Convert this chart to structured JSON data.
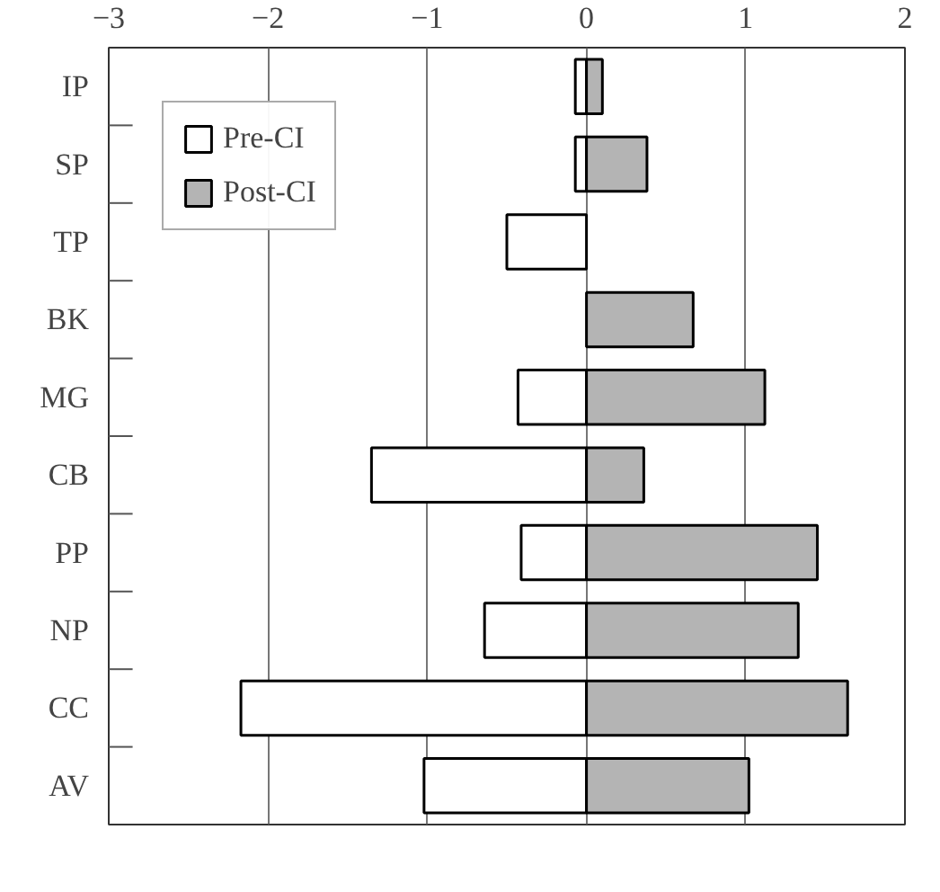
{
  "chart_data": {
    "type": "bar",
    "orientation": "horizontal",
    "categories": [
      "IP",
      "SP",
      "TP",
      "BK",
      "MG",
      "CB",
      "PP",
      "NP",
      "CC",
      "AV"
    ],
    "series": [
      {
        "name": "Pre-CI",
        "color": "#ffffff",
        "values": [
          -0.07,
          -0.07,
          -0.5,
          null,
          -0.43,
          -1.35,
          -0.41,
          -0.64,
          -2.17,
          -1.02
        ]
      },
      {
        "name": "Post-CI",
        "color": "#b4b4b4",
        "values": [
          0.1,
          0.38,
          null,
          0.67,
          1.12,
          0.36,
          1.45,
          1.33,
          1.64,
          1.02
        ]
      }
    ],
    "stacked": true,
    "xlim": [
      -3,
      2
    ],
    "xticks": [
      -3,
      -2,
      -1,
      0,
      1,
      2
    ],
    "grid": "x",
    "legend": "top left"
  }
}
